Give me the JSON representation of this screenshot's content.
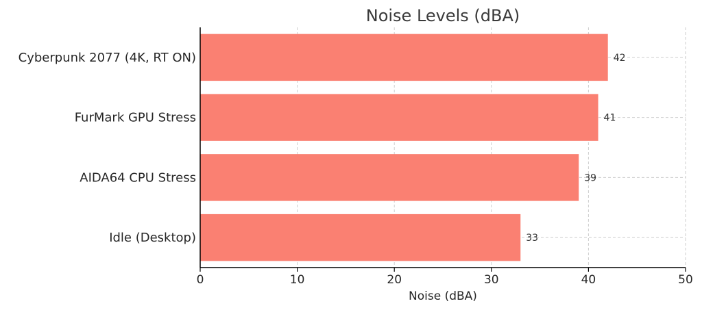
{
  "chart_data": {
    "type": "bar",
    "orientation": "horizontal",
    "title": "Noise Levels (dBA)",
    "xlabel": "Noise (dBA)",
    "ylabel": "",
    "categories": [
      "Cyberpunk 2077 (4K, RT ON)",
      "FurMark GPU Stress",
      "AIDA64 CPU Stress",
      "Idle (Desktop)"
    ],
    "values": [
      42,
      41,
      39,
      33
    ],
    "xlim": [
      0,
      50
    ],
    "xticks": [
      0,
      10,
      20,
      30,
      40,
      50
    ],
    "grid": true,
    "bar_color": "#fa8072",
    "data_labels": true
  }
}
